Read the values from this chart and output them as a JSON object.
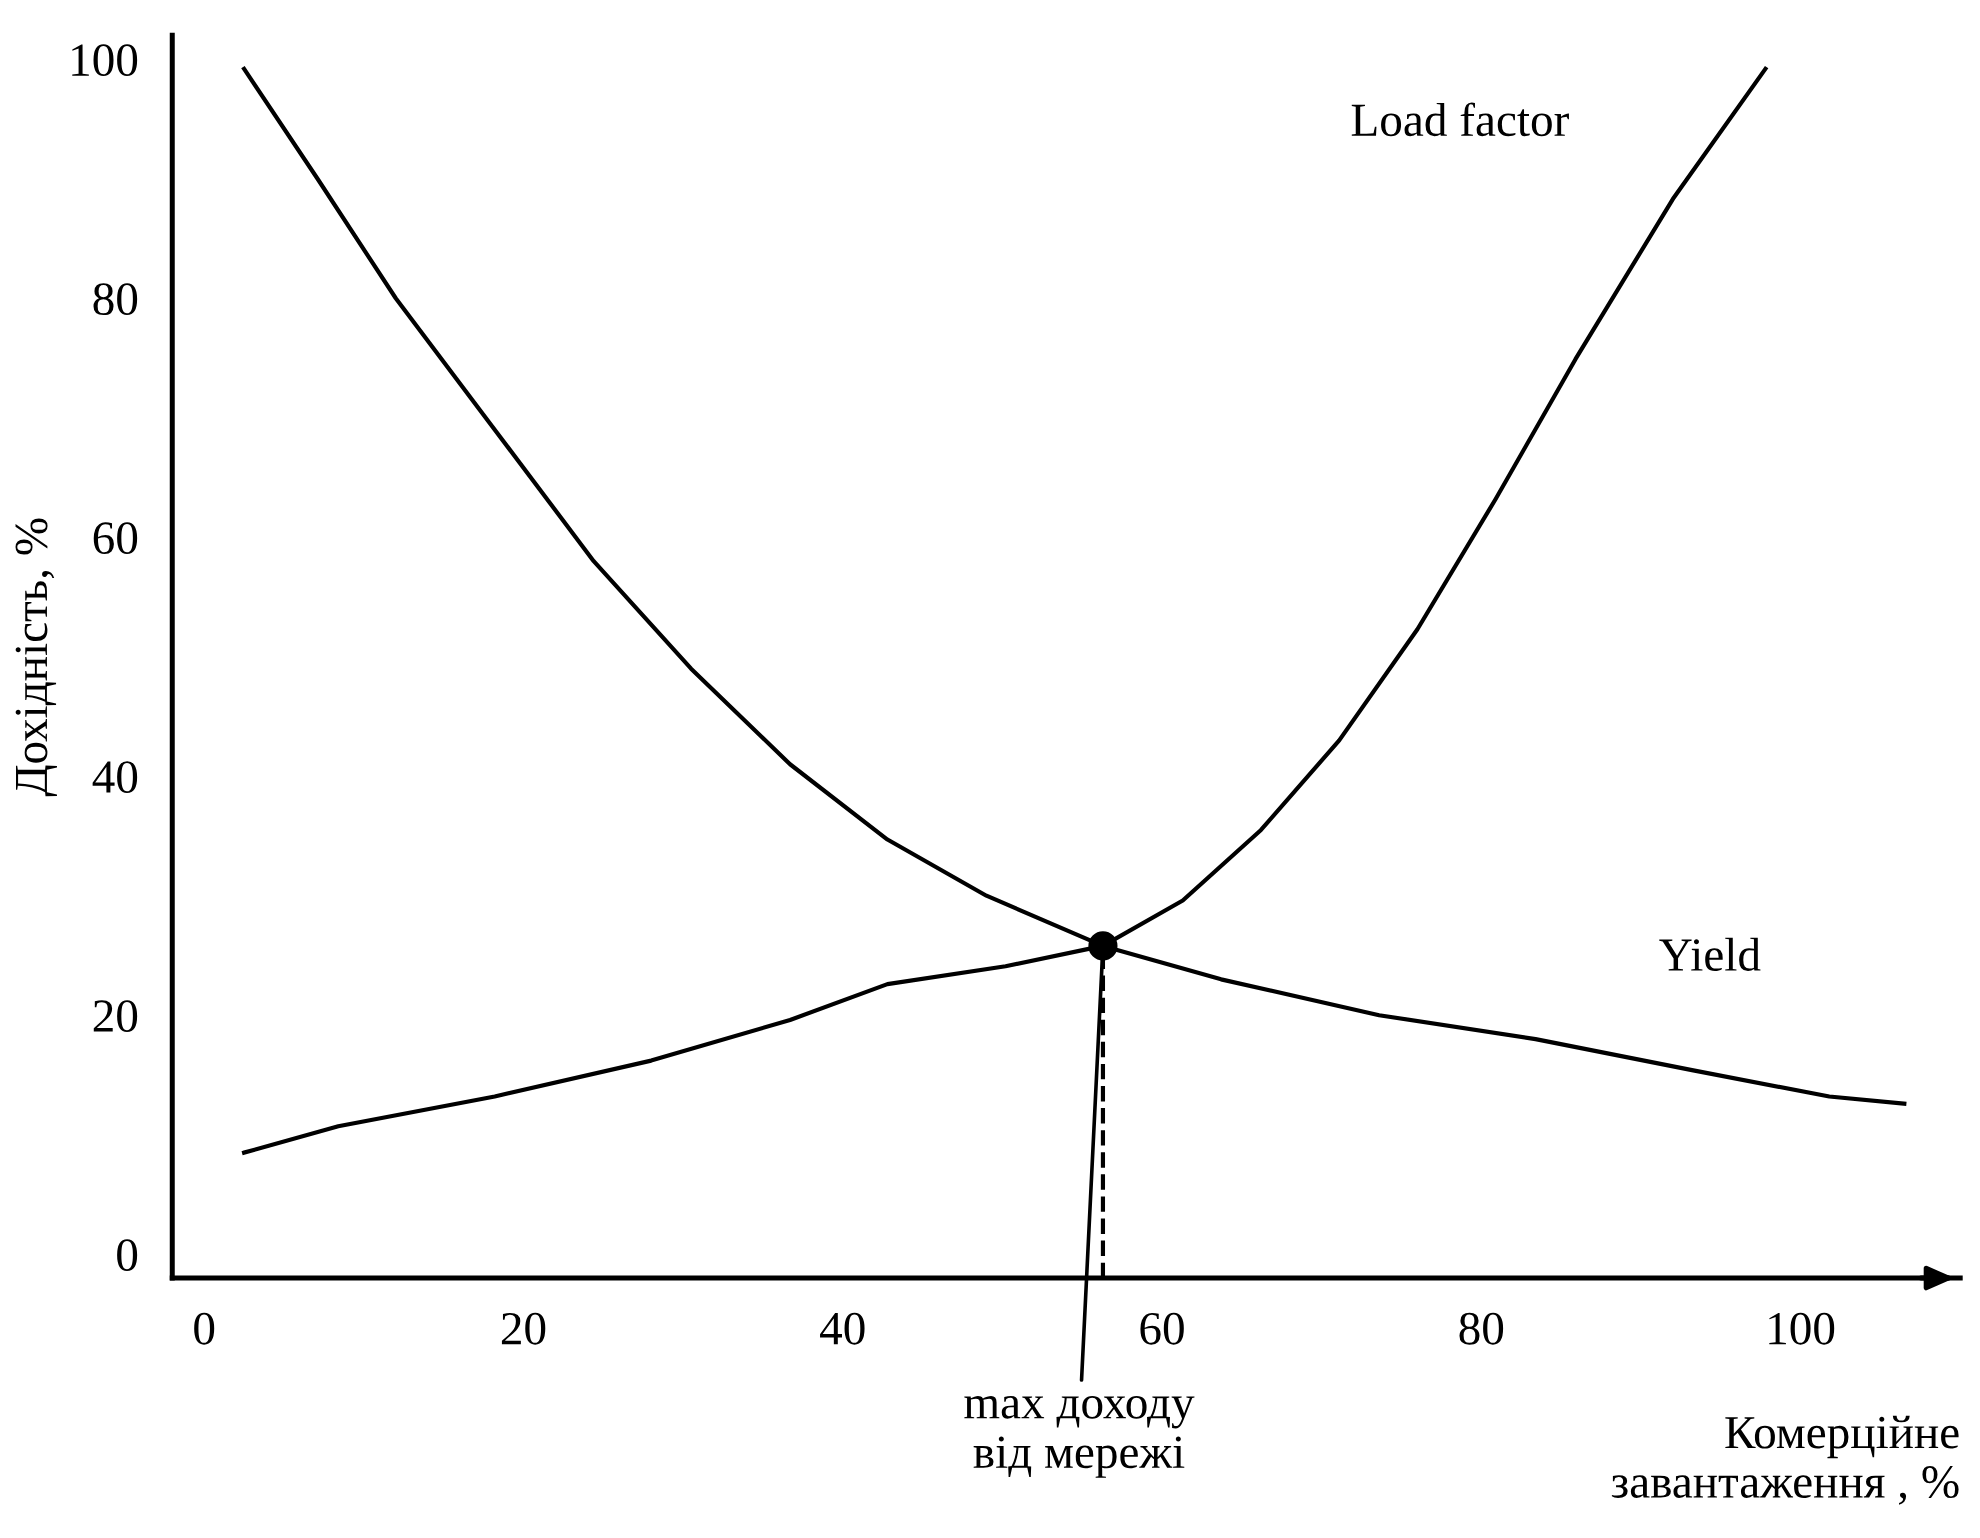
{
  "chart_data": {
    "type": "line",
    "xlabel": "Комерційне\nзавантаження , %",
    "ylabel": "Дохідність, %",
    "xlim": [
      -2,
      110
    ],
    "ylim": [
      -2,
      102
    ],
    "xticks": [
      0,
      20,
      40,
      60,
      80,
      100
    ],
    "yticks": [
      0,
      20,
      40,
      60,
      80,
      100
    ],
    "grid": false,
    "legend": false,
    "marker": "none",
    "line_style": "solid",
    "series": [
      {
        "name": "Yield",
        "color": "#000000",
        "x": [
          2.5,
          7.1,
          12,
          18.2,
          24.4,
          30.5,
          36.7,
          42.8,
          49,
          56.3,
          63.7,
          73.6,
          83.4,
          93.2,
          101.8,
          106.5
        ],
        "values": [
          99.2,
          90,
          80,
          69,
          58,
          49,
          41,
          34.7,
          30,
          25.8,
          23,
          20,
          18,
          15.4,
          13.2,
          12.6
        ]
      },
      {
        "name": "Load factor",
        "color": "#000000",
        "x": [
          2.5,
          8.4,
          18.2,
          28,
          36.7,
          42.8,
          50.2,
          56.3,
          61.3,
          66.2,
          71.1,
          76,
          80.9,
          85.9,
          92,
          97.8
        ],
        "values": [
          8.5,
          10.7,
          13.2,
          16.2,
          19.6,
          22.6,
          24.1,
          25.8,
          29.6,
          35.5,
          43,
          52.3,
          63.2,
          74.9,
          88.3,
          99.2
        ]
      },
      {
        "type": "line",
        "color": "#000000",
        "x": [
          56.3,
          56.3
        ],
        "values": [
          -2,
          25.8
        ],
        "line_style": "dashed"
      },
      {
        "type": "scatter",
        "color": "#000000",
        "x": [
          56.3
        ],
        "values": [
          25.8
        ],
        "marker": "circle"
      }
    ],
    "annotations": [
      {
        "text": "max доходу\nвід мережі",
        "x": 56.3,
        "y": 25.8
      }
    ]
  }
}
